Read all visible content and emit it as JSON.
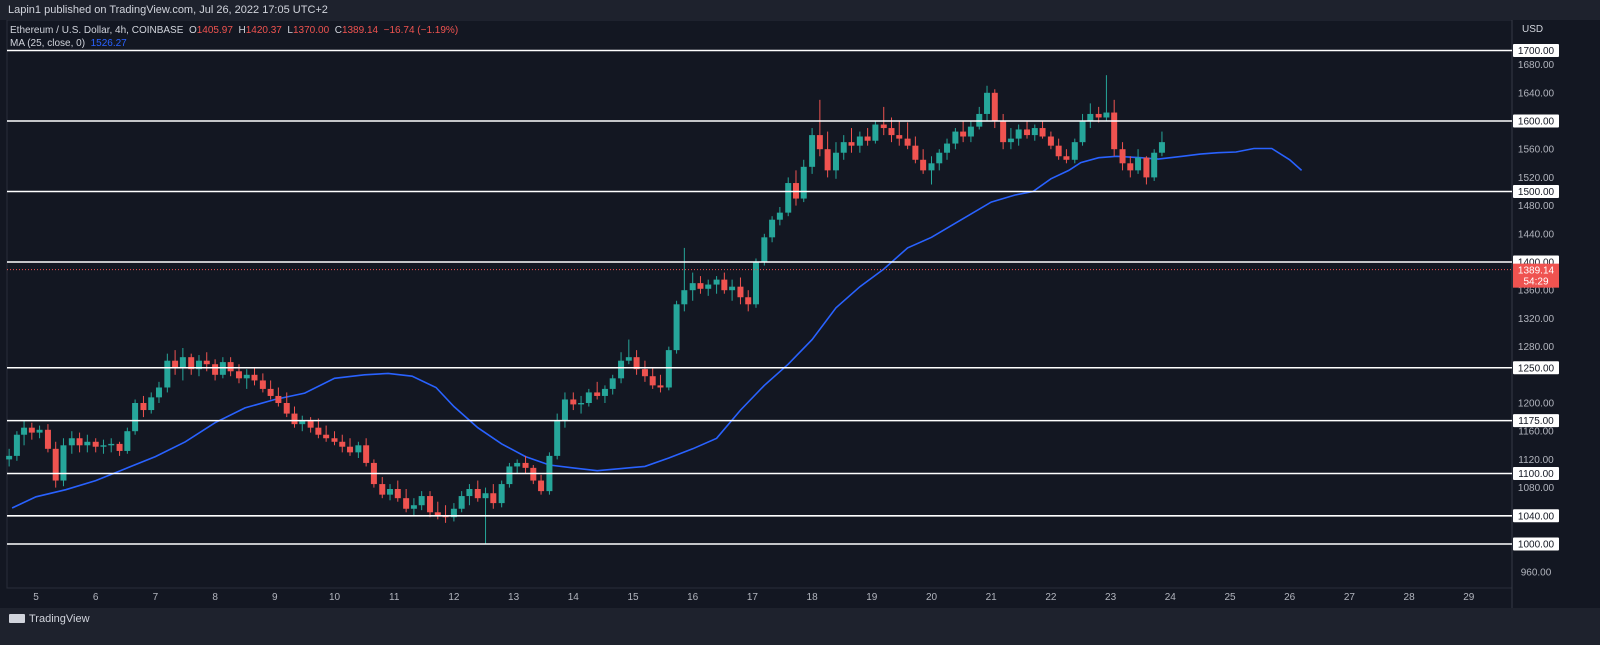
{
  "header": {
    "publisher": "Lapin1 published on TradingView.com, Jul 26, 2022 17:05 UTC+2"
  },
  "legend": {
    "symbol": "Ethereum / U.S. Dollar, 4h, COINBASE",
    "o_label": "O",
    "o_value": "1405.97",
    "h_label": "H",
    "h_value": "1420.37",
    "l_label": "L",
    "l_value": "1370.00",
    "c_label": "C",
    "c_value": "1389.14",
    "change": "−16.74 (−1.19%)",
    "ma_label": "MA (25, close, 0)",
    "ma_value": "1526.27"
  },
  "footer": {
    "logo_text": "TradingView"
  },
  "colors": {
    "up": "#26a69a",
    "down": "#ef5350",
    "ma": "#2962ff",
    "level": "#ffffff",
    "background": "#131722"
  },
  "chart_data": {
    "type": "candlestick",
    "currency": "USD",
    "yrange": [
      920,
      1740
    ],
    "price_ticks": [
      "960.00",
      "1080.00",
      "1120.00",
      "1160.00",
      "1200.00",
      "1280.00",
      "1320.00",
      "1360.00",
      "1440.00",
      "1480.00",
      "1520.00",
      "1560.00",
      "1640.00",
      "1680.00"
    ],
    "x_ticks": [
      "5",
      "6",
      "7",
      "8",
      "9",
      "10",
      "11",
      "12",
      "13",
      "14",
      "15",
      "16",
      "17",
      "18",
      "19",
      "20",
      "21",
      "22",
      "23",
      "24",
      "25",
      "26",
      "27",
      "28",
      "29"
    ],
    "levels": [
      "1000.00",
      "1040.00",
      "1100.00",
      "1175.00",
      "1250.00",
      "1400.00",
      "1500.00",
      "1600.00",
      "1700.00"
    ],
    "current_price": "1389.14",
    "countdown": "54:29",
    "ma_series": [
      [
        4.6,
        1051
      ],
      [
        5.0,
        1067
      ],
      [
        5.5,
        1077
      ],
      [
        6.0,
        1090
      ],
      [
        6.5,
        1107
      ],
      [
        7.0,
        1124
      ],
      [
        7.5,
        1145
      ],
      [
        8.0,
        1172
      ],
      [
        8.5,
        1193
      ],
      [
        9.0,
        1205
      ],
      [
        9.5,
        1214
      ],
      [
        10.0,
        1235
      ],
      [
        10.5,
        1240
      ],
      [
        10.9,
        1242
      ],
      [
        11.3,
        1238
      ],
      [
        11.7,
        1222
      ],
      [
        12.0,
        1195
      ],
      [
        12.4,
        1165
      ],
      [
        12.8,
        1142
      ],
      [
        13.2,
        1124
      ],
      [
        13.6,
        1112
      ],
      [
        14.0,
        1108
      ],
      [
        14.4,
        1104
      ],
      [
        14.8,
        1107
      ],
      [
        15.2,
        1110
      ],
      [
        15.6,
        1122
      ],
      [
        16.0,
        1135
      ],
      [
        16.4,
        1150
      ],
      [
        16.8,
        1190
      ],
      [
        17.2,
        1225
      ],
      [
        17.6,
        1255
      ],
      [
        18.0,
        1290
      ],
      [
        18.4,
        1335
      ],
      [
        18.8,
        1365
      ],
      [
        19.2,
        1390
      ],
      [
        19.6,
        1420
      ],
      [
        20.0,
        1435
      ],
      [
        20.4,
        1455
      ],
      [
        20.6,
        1465
      ],
      [
        21.0,
        1485
      ],
      [
        21.4,
        1495
      ],
      [
        21.7,
        1500
      ],
      [
        22.0,
        1518
      ],
      [
        22.3,
        1530
      ],
      [
        22.5,
        1541
      ],
      [
        22.8,
        1548
      ],
      [
        23.1,
        1550
      ],
      [
        23.5,
        1548
      ],
      [
        23.8,
        1546
      ],
      [
        24.2,
        1550
      ],
      [
        24.5,
        1553
      ],
      [
        24.8,
        1555
      ],
      [
        25.1,
        1556
      ],
      [
        25.4,
        1561
      ],
      [
        25.7,
        1561
      ],
      [
        26.0,
        1545
      ],
      [
        26.2,
        1530
      ]
    ],
    "candles": [
      [
        4.55,
        1120,
        1135,
        1110,
        1125
      ],
      [
        4.68,
        1125,
        1160,
        1118,
        1155
      ],
      [
        4.8,
        1155,
        1175,
        1140,
        1165
      ],
      [
        4.93,
        1165,
        1172,
        1148,
        1158
      ],
      [
        5.06,
        1158,
        1168,
        1150,
        1162
      ],
      [
        5.2,
        1162,
        1170,
        1130,
        1135
      ],
      [
        5.33,
        1135,
        1145,
        1080,
        1090
      ],
      [
        5.46,
        1090,
        1150,
        1082,
        1140
      ],
      [
        5.6,
        1140,
        1160,
        1128,
        1150
      ],
      [
        5.73,
        1150,
        1158,
        1130,
        1140
      ],
      [
        5.86,
        1140,
        1155,
        1130,
        1145
      ],
      [
        6.0,
        1145,
        1150,
        1130,
        1138
      ],
      [
        6.13,
        1138,
        1148,
        1128,
        1140
      ],
      [
        6.26,
        1140,
        1150,
        1130,
        1142
      ],
      [
        6.4,
        1142,
        1145,
        1125,
        1132
      ],
      [
        6.53,
        1132,
        1165,
        1128,
        1160
      ],
      [
        6.66,
        1160,
        1205,
        1155,
        1200
      ],
      [
        6.8,
        1200,
        1210,
        1180,
        1190
      ],
      [
        6.93,
        1190,
        1215,
        1185,
        1208
      ],
      [
        7.06,
        1208,
        1230,
        1200,
        1222
      ],
      [
        7.2,
        1222,
        1270,
        1215,
        1260
      ],
      [
        7.33,
        1260,
        1275,
        1240,
        1250
      ],
      [
        7.46,
        1250,
        1278,
        1232,
        1265
      ],
      [
        7.6,
        1265,
        1270,
        1240,
        1248
      ],
      [
        7.73,
        1248,
        1268,
        1238,
        1260
      ],
      [
        7.86,
        1260,
        1272,
        1245,
        1255
      ],
      [
        8.0,
        1255,
        1262,
        1232,
        1240
      ],
      [
        8.13,
        1240,
        1265,
        1235,
        1258
      ],
      [
        8.26,
        1258,
        1265,
        1238,
        1245
      ],
      [
        8.4,
        1245,
        1255,
        1228,
        1235
      ],
      [
        8.53,
        1235,
        1248,
        1220,
        1240
      ],
      [
        8.66,
        1240,
        1250,
        1225,
        1232
      ],
      [
        8.8,
        1232,
        1242,
        1215,
        1220
      ],
      [
        8.93,
        1220,
        1232,
        1205,
        1210
      ],
      [
        9.06,
        1210,
        1222,
        1195,
        1200
      ],
      [
        9.2,
        1200,
        1215,
        1180,
        1185
      ],
      [
        9.33,
        1185,
        1195,
        1165,
        1170
      ],
      [
        9.46,
        1170,
        1182,
        1160,
        1175
      ],
      [
        9.6,
        1175,
        1180,
        1158,
        1165
      ],
      [
        9.73,
        1165,
        1178,
        1150,
        1155
      ],
      [
        9.86,
        1155,
        1168,
        1145,
        1150
      ],
      [
        10.0,
        1150,
        1160,
        1140,
        1145
      ],
      [
        10.13,
        1145,
        1155,
        1130,
        1138
      ],
      [
        10.26,
        1138,
        1150,
        1125,
        1130
      ],
      [
        10.4,
        1130,
        1145,
        1122,
        1140
      ],
      [
        10.53,
        1140,
        1150,
        1110,
        1115
      ],
      [
        10.66,
        1115,
        1120,
        1080,
        1085
      ],
      [
        10.8,
        1085,
        1095,
        1065,
        1070
      ],
      [
        10.93,
        1070,
        1085,
        1062,
        1078
      ],
      [
        11.06,
        1078,
        1090,
        1060,
        1065
      ],
      [
        11.2,
        1065,
        1078,
        1045,
        1050
      ],
      [
        11.33,
        1050,
        1065,
        1040,
        1055
      ],
      [
        11.46,
        1055,
        1075,
        1048,
        1068
      ],
      [
        11.6,
        1068,
        1075,
        1038,
        1045
      ],
      [
        11.73,
        1045,
        1060,
        1035,
        1040
      ],
      [
        11.86,
        1040,
        1055,
        1030,
        1038
      ],
      [
        12.0,
        1038,
        1058,
        1032,
        1050
      ],
      [
        12.13,
        1050,
        1075,
        1045,
        1068
      ],
      [
        12.26,
        1068,
        1085,
        1055,
        1078
      ],
      [
        12.4,
        1078,
        1090,
        1060,
        1065
      ],
      [
        12.53,
        1065,
        1080,
        1000,
        1072
      ],
      [
        12.66,
        1072,
        1085,
        1050,
        1058
      ],
      [
        12.8,
        1058,
        1090,
        1052,
        1085
      ],
      [
        12.93,
        1085,
        1115,
        1080,
        1110
      ],
      [
        13.06,
        1110,
        1120,
        1100,
        1115
      ],
      [
        13.2,
        1115,
        1125,
        1100,
        1108
      ],
      [
        13.33,
        1108,
        1112,
        1085,
        1090
      ],
      [
        13.46,
        1090,
        1098,
        1070,
        1075
      ],
      [
        13.6,
        1075,
        1130,
        1070,
        1125
      ],
      [
        13.73,
        1125,
        1185,
        1120,
        1175
      ],
      [
        13.86,
        1175,
        1215,
        1165,
        1205
      ],
      [
        14.0,
        1205,
        1215,
        1190,
        1198
      ],
      [
        14.13,
        1198,
        1210,
        1185,
        1200
      ],
      [
        14.26,
        1200,
        1220,
        1195,
        1215
      ],
      [
        14.4,
        1215,
        1230,
        1205,
        1210
      ],
      [
        14.53,
        1210,
        1225,
        1200,
        1220
      ],
      [
        14.66,
        1220,
        1240,
        1212,
        1235
      ],
      [
        14.8,
        1235,
        1272,
        1228,
        1260
      ],
      [
        14.93,
        1260,
        1290,
        1255,
        1265
      ],
      [
        15.06,
        1265,
        1275,
        1240,
        1248
      ],
      [
        15.2,
        1248,
        1260,
        1230,
        1238
      ],
      [
        15.33,
        1238,
        1250,
        1220,
        1225
      ],
      [
        15.46,
        1225,
        1240,
        1215,
        1222
      ],
      [
        15.6,
        1222,
        1280,
        1218,
        1275
      ],
      [
        15.73,
        1275,
        1345,
        1270,
        1340
      ],
      [
        15.86,
        1340,
        1420,
        1330,
        1360
      ],
      [
        16.0,
        1360,
        1385,
        1345,
        1370
      ],
      [
        16.13,
        1370,
        1380,
        1355,
        1362
      ],
      [
        16.26,
        1362,
        1375,
        1352,
        1368
      ],
      [
        16.4,
        1368,
        1380,
        1355,
        1375
      ],
      [
        16.53,
        1375,
        1385,
        1355,
        1360
      ],
      [
        16.66,
        1360,
        1375,
        1345,
        1365
      ],
      [
        16.8,
        1365,
        1378,
        1340,
        1350
      ],
      [
        16.93,
        1350,
        1360,
        1330,
        1340
      ],
      [
        17.06,
        1340,
        1405,
        1335,
        1400
      ],
      [
        17.2,
        1400,
        1440,
        1395,
        1435
      ],
      [
        17.33,
        1435,
        1465,
        1428,
        1460
      ],
      [
        17.46,
        1460,
        1478,
        1452,
        1470
      ],
      [
        17.6,
        1470,
        1520,
        1465,
        1512
      ],
      [
        17.73,
        1512,
        1530,
        1480,
        1490
      ],
      [
        17.86,
        1490,
        1545,
        1485,
        1535
      ],
      [
        18.0,
        1535,
        1590,
        1525,
        1580
      ],
      [
        18.13,
        1580,
        1630,
        1550,
        1560
      ],
      [
        18.26,
        1560,
        1585,
        1520,
        1530
      ],
      [
        18.4,
        1530,
        1570,
        1518,
        1555
      ],
      [
        18.53,
        1555,
        1580,
        1545,
        1570
      ],
      [
        18.66,
        1570,
        1590,
        1555,
        1565
      ],
      [
        18.8,
        1565,
        1585,
        1555,
        1578
      ],
      [
        18.93,
        1578,
        1590,
        1565,
        1572
      ],
      [
        19.06,
        1572,
        1600,
        1568,
        1595
      ],
      [
        19.2,
        1595,
        1620,
        1580,
        1590
      ],
      [
        19.33,
        1590,
        1605,
        1570,
        1580
      ],
      [
        19.46,
        1580,
        1600,
        1565,
        1575
      ],
      [
        19.6,
        1575,
        1598,
        1560,
        1565
      ],
      [
        19.73,
        1565,
        1578,
        1540,
        1545
      ],
      [
        19.86,
        1545,
        1560,
        1525,
        1530
      ],
      [
        20.0,
        1530,
        1550,
        1510,
        1540
      ],
      [
        20.13,
        1540,
        1560,
        1530,
        1555
      ],
      [
        20.26,
        1555,
        1575,
        1545,
        1568
      ],
      [
        20.4,
        1568,
        1590,
        1560,
        1585
      ],
      [
        20.53,
        1585,
        1600,
        1570,
        1578
      ],
      [
        20.66,
        1578,
        1600,
        1570,
        1592
      ],
      [
        20.8,
        1592,
        1620,
        1588,
        1610
      ],
      [
        20.93,
        1610,
        1650,
        1600,
        1640
      ],
      [
        21.06,
        1640,
        1645,
        1590,
        1600
      ],
      [
        21.2,
        1600,
        1610,
        1560,
        1570
      ],
      [
        21.33,
        1570,
        1590,
        1560,
        1575
      ],
      [
        21.46,
        1575,
        1595,
        1565,
        1588
      ],
      [
        21.6,
        1588,
        1600,
        1575,
        1580
      ],
      [
        21.73,
        1580,
        1595,
        1572,
        1590
      ],
      [
        21.86,
        1590,
        1600,
        1575,
        1578
      ],
      [
        22.0,
        1578,
        1585,
        1560,
        1565
      ],
      [
        22.13,
        1565,
        1575,
        1545,
        1550
      ],
      [
        22.26,
        1550,
        1560,
        1540,
        1545
      ],
      [
        22.4,
        1545,
        1575,
        1540,
        1570
      ],
      [
        22.53,
        1570,
        1610,
        1565,
        1600
      ],
      [
        22.66,
        1600,
        1625,
        1590,
        1610
      ],
      [
        22.8,
        1610,
        1620,
        1598,
        1605
      ],
      [
        22.93,
        1605,
        1665,
        1600,
        1612
      ],
      [
        23.06,
        1612,
        1630,
        1550,
        1560
      ],
      [
        23.2,
        1560,
        1570,
        1530,
        1540
      ],
      [
        23.33,
        1540,
        1550,
        1520,
        1530
      ],
      [
        23.46,
        1530,
        1560,
        1525,
        1548
      ],
      [
        23.6,
        1548,
        1550,
        1510,
        1520
      ],
      [
        23.73,
        1520,
        1560,
        1515,
        1555
      ],
      [
        23.86,
        1555,
        1585,
        1550,
        1570
      ]
    ]
  }
}
